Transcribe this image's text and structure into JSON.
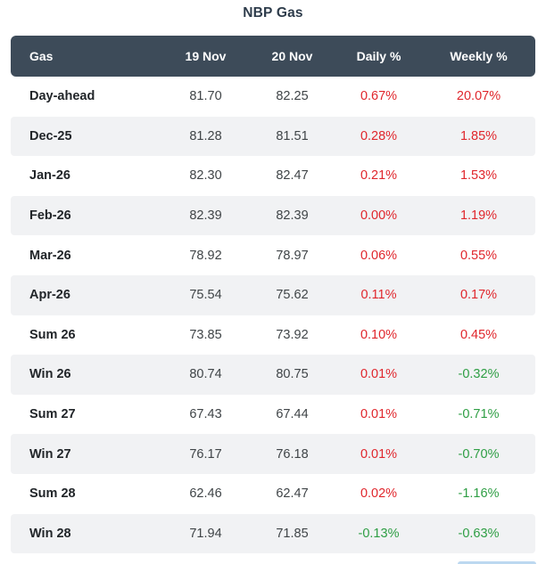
{
  "title": "NBP Gas",
  "table": {
    "columns": [
      "Gas",
      "19 Nov",
      "20 Nov",
      "Daily %",
      "Weekly %"
    ],
    "rows": [
      {
        "label": "Day-ahead",
        "nov19": "81.70",
        "nov20": "82.25",
        "daily": "0.67%",
        "weekly": "20.07%"
      },
      {
        "label": "Dec-25",
        "nov19": "81.28",
        "nov20": "81.51",
        "daily": "0.28%",
        "weekly": "1.85%"
      },
      {
        "label": "Jan-26",
        "nov19": "82.30",
        "nov20": "82.47",
        "daily": "0.21%",
        "weekly": "1.53%"
      },
      {
        "label": "Feb-26",
        "nov19": "82.39",
        "nov20": "82.39",
        "daily": "0.00%",
        "weekly": "1.19%"
      },
      {
        "label": "Mar-26",
        "nov19": "78.92",
        "nov20": "78.97",
        "daily": "0.06%",
        "weekly": "0.55%"
      },
      {
        "label": "Apr-26",
        "nov19": "75.54",
        "nov20": "75.62",
        "daily": "0.11%",
        "weekly": "0.17%"
      },
      {
        "label": "Sum 26",
        "nov19": "73.85",
        "nov20": "73.92",
        "daily": "0.10%",
        "weekly": "0.45%"
      },
      {
        "label": "Win 26",
        "nov19": "80.74",
        "nov20": "80.75",
        "daily": "0.01%",
        "weekly": "-0.32%"
      },
      {
        "label": "Sum 27",
        "nov19": "67.43",
        "nov20": "67.44",
        "daily": "0.01%",
        "weekly": "-0.71%"
      },
      {
        "label": "Win 27",
        "nov19": "76.17",
        "nov20": "76.18",
        "daily": "0.01%",
        "weekly": "-0.70%"
      },
      {
        "label": "Sum 28",
        "nov19": "62.46",
        "nov20": "62.47",
        "daily": "0.02%",
        "weekly": "-1.16%"
      },
      {
        "label": "Win 28",
        "nov19": "71.94",
        "nov20": "71.85",
        "daily": "-0.13%",
        "weekly": "-0.63%"
      }
    ]
  },
  "colors": {
    "positive_change": "#e0262c",
    "negative_change": "#2e9e44",
    "header_bg": "#3d4b59"
  }
}
